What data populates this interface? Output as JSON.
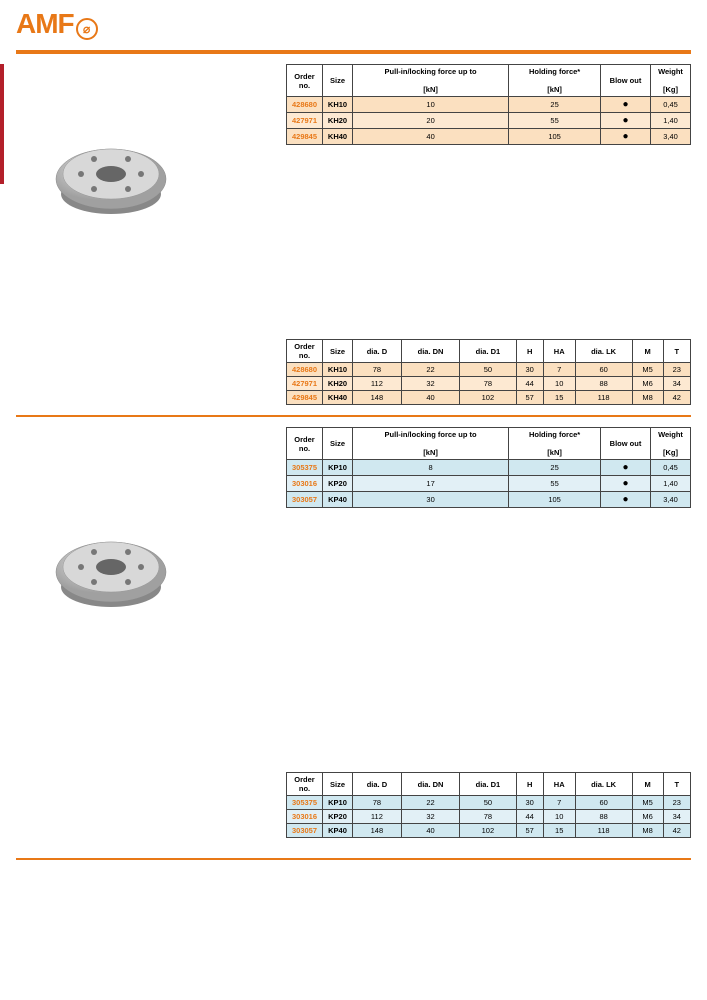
{
  "logo": "AMF",
  "table1": {
    "headers": [
      "Order\nno.",
      "Size",
      "Pull-in/locking force up to\n\n[kN]",
      "Holding force*\n\n[kN]",
      "Blow out",
      "Weight\n\n[Kg]"
    ],
    "rows": [
      {
        "order": "428680",
        "size": "KH10",
        "pull": "10",
        "hold": "25",
        "blow": "●",
        "weight": "0,45",
        "cls": "row-beige1"
      },
      {
        "order": "427971",
        "size": "KH20",
        "pull": "20",
        "hold": "55",
        "blow": "●",
        "weight": "1,40",
        "cls": "row-beige2"
      },
      {
        "order": "429845",
        "size": "KH40",
        "pull": "40",
        "hold": "105",
        "blow": "●",
        "weight": "3,40",
        "cls": "row-beige1"
      }
    ]
  },
  "table2": {
    "headers": [
      "Order\nno.",
      "Size",
      "dia. D",
      "dia. DN",
      "dia. D1",
      "H",
      "HA",
      "dia. LK",
      "M",
      "T"
    ],
    "rows": [
      {
        "order": "428680",
        "size": "KH10",
        "d": "78",
        "dn": "22",
        "d1": "50",
        "h": "30",
        "ha": "7",
        "lk": "60",
        "m": "M5",
        "t": "23",
        "cls": "row-beige1"
      },
      {
        "order": "427971",
        "size": "KH20",
        "d": "112",
        "dn": "32",
        "d1": "78",
        "h": "44",
        "ha": "10",
        "lk": "88",
        "m": "M6",
        "t": "34",
        "cls": "row-beige2"
      },
      {
        "order": "429845",
        "size": "KH40",
        "d": "148",
        "dn": "40",
        "d1": "102",
        "h": "57",
        "ha": "15",
        "lk": "118",
        "m": "M8",
        "t": "42",
        "cls": "row-beige1"
      }
    ]
  },
  "table3": {
    "headers": [
      "Order\nno.",
      "Size",
      "Pull-in/locking force up to\n\n[kN]",
      "Holding force*\n\n[kN]",
      "Blow out",
      "Weight\n\n[Kg]"
    ],
    "rows": [
      {
        "order": "305375",
        "size": "KP10",
        "pull": "8",
        "hold": "25",
        "blow": "●",
        "weight": "0,45",
        "cls": "row-blue1"
      },
      {
        "order": "303016",
        "size": "KP20",
        "pull": "17",
        "hold": "55",
        "blow": "●",
        "weight": "1,40",
        "cls": "row-blue2"
      },
      {
        "order": "303057",
        "size": "KP40",
        "pull": "30",
        "hold": "105",
        "blow": "●",
        "weight": "3,40",
        "cls": "row-blue1"
      }
    ]
  },
  "table4": {
    "headers": [
      "Order\nno.",
      "Size",
      "dia. D",
      "dia. DN",
      "dia. D1",
      "H",
      "HA",
      "dia. LK",
      "M",
      "T"
    ],
    "rows": [
      {
        "order": "305375",
        "size": "KP10",
        "d": "78",
        "dn": "22",
        "d1": "50",
        "h": "30",
        "ha": "7",
        "lk": "60",
        "m": "M5",
        "t": "23",
        "cls": "row-blue1"
      },
      {
        "order": "303016",
        "size": "KP20",
        "d": "112",
        "dn": "32",
        "d1": "78",
        "h": "44",
        "ha": "10",
        "lk": "88",
        "m": "M6",
        "t": "34",
        "cls": "row-blue2"
      },
      {
        "order": "303057",
        "size": "KP40",
        "d": "148",
        "dn": "40",
        "d1": "102",
        "h": "57",
        "ha": "15",
        "lk": "118",
        "m": "M8",
        "t": "42",
        "cls": "row-blue1"
      }
    ]
  }
}
